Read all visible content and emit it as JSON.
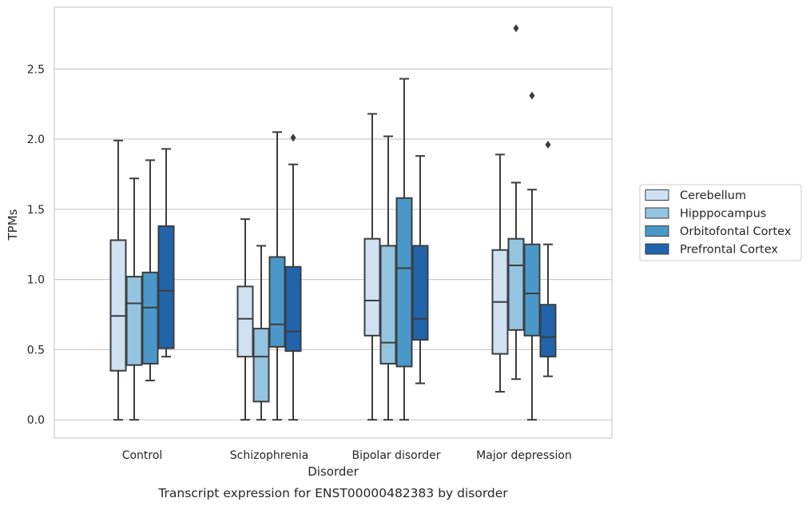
{
  "chart_data": {
    "type": "boxplot",
    "title": "",
    "caption": "Transcript expression for ENST00000482383 by disorder",
    "xlabel": "Disorder",
    "ylabel": "TPMs",
    "ylim": [
      -0.13,
      2.94
    ],
    "yticks": [
      "0.0",
      "0.5",
      "1.0",
      "1.5",
      "2.0",
      "2.5"
    ],
    "ytick_values": [
      0.0,
      0.5,
      1.0,
      1.5,
      2.0,
      2.5
    ],
    "categories": [
      "Control",
      "Schizophrenia",
      "Bipolar disorder",
      "Major depression"
    ],
    "grid": "horizontal",
    "legend_position": "right",
    "colors": {
      "grid": "#cccccc",
      "frame": "#cccccc",
      "box_edge": "#3d3d3d"
    },
    "series": [
      {
        "name": "Cerebellum",
        "color": "#d0e1f2",
        "boxes": [
          {
            "whislo": 0.0,
            "q1": 0.35,
            "med": 0.74,
            "q3": 1.28,
            "whishi": 1.99,
            "fliers": []
          },
          {
            "whislo": 0.0,
            "q1": 0.45,
            "med": 0.72,
            "q3": 0.95,
            "whishi": 1.43,
            "fliers": []
          },
          {
            "whislo": 0.0,
            "q1": 0.6,
            "med": 0.85,
            "q3": 1.29,
            "whishi": 2.18,
            "fliers": []
          },
          {
            "whislo": 0.2,
            "q1": 0.47,
            "med": 0.84,
            "q3": 1.21,
            "whishi": 1.89,
            "fliers": []
          }
        ]
      },
      {
        "name": "Hipppocampus",
        "color": "#94c4df",
        "boxes": [
          {
            "whislo": 0.0,
            "q1": 0.39,
            "med": 0.83,
            "q3": 1.02,
            "whishi": 1.72,
            "fliers": []
          },
          {
            "whislo": 0.0,
            "q1": 0.13,
            "med": 0.45,
            "q3": 0.65,
            "whishi": 1.24,
            "fliers": []
          },
          {
            "whislo": 0.0,
            "q1": 0.4,
            "med": 0.55,
            "q3": 1.24,
            "whishi": 2.02,
            "fliers": []
          },
          {
            "whislo": 0.29,
            "q1": 0.64,
            "med": 1.1,
            "q3": 1.29,
            "whishi": 1.69,
            "fliers": [
              2.79
            ]
          }
        ]
      },
      {
        "name": "Orbitofontal Cortex",
        "color": "#4a98c9",
        "boxes": [
          {
            "whislo": 0.28,
            "q1": 0.4,
            "med": 0.8,
            "q3": 1.05,
            "whishi": 1.85,
            "fliers": []
          },
          {
            "whislo": 0.0,
            "q1": 0.52,
            "med": 0.68,
            "q3": 1.16,
            "whishi": 2.05,
            "fliers": []
          },
          {
            "whislo": 0.0,
            "q1": 0.38,
            "med": 1.08,
            "q3": 1.58,
            "whishi": 2.43,
            "fliers": []
          },
          {
            "whislo": 0.0,
            "q1": 0.6,
            "med": 0.9,
            "q3": 1.25,
            "whishi": 1.64,
            "fliers": [
              2.31
            ]
          }
        ]
      },
      {
        "name": "Prefrontal Cortex",
        "color": "#2164ab",
        "boxes": [
          {
            "whislo": 0.45,
            "q1": 0.51,
            "med": 0.92,
            "q3": 1.38,
            "whishi": 1.93,
            "fliers": []
          },
          {
            "whislo": 0.0,
            "q1": 0.49,
            "med": 0.63,
            "q3": 1.09,
            "whishi": 1.82,
            "fliers": [
              2.01
            ]
          },
          {
            "whislo": 0.26,
            "q1": 0.57,
            "med": 0.72,
            "q3": 1.24,
            "whishi": 1.88,
            "fliers": []
          },
          {
            "whislo": 0.31,
            "q1": 0.45,
            "med": 0.59,
            "q3": 0.82,
            "whishi": 1.25,
            "fliers": [
              1.96
            ]
          }
        ]
      }
    ]
  }
}
